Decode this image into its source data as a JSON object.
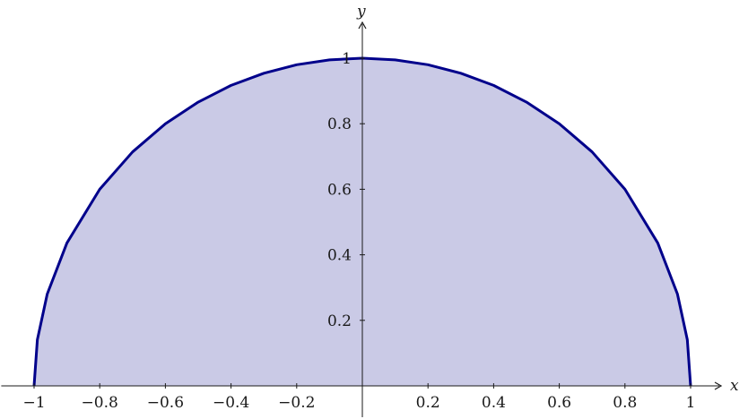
{
  "chart_data": {
    "type": "area",
    "title": "",
    "xlabel": "x",
    "ylabel": "y",
    "xlim": [
      -1.1,
      1.1
    ],
    "ylim": [
      -0.1,
      1.1
    ],
    "grid": false,
    "x_ticks": [
      -1,
      -0.8,
      -0.6,
      -0.4,
      -0.2,
      0.2,
      0.4,
      0.6,
      0.8,
      1
    ],
    "x_tick_labels": [
      "−1",
      "−0.8",
      "−0.6",
      "−0.4",
      "−0.2",
      "0.2",
      "0.4",
      "0.6",
      "0.8",
      "1"
    ],
    "y_ticks": [
      0.2,
      0.4,
      0.6,
      0.8,
      1
    ],
    "y_tick_labels": [
      "0.2",
      "0.4",
      "0.6",
      "0.8",
      "1"
    ],
    "series": [
      {
        "x": [
          -1,
          -0.99,
          -0.96,
          -0.9,
          -0.8,
          -0.7,
          -0.6,
          -0.5,
          -0.4,
          -0.3,
          -0.2,
          -0.1,
          0,
          0.1,
          0.2,
          0.3,
          0.4,
          0.5,
          0.6,
          0.7,
          0.8,
          0.9,
          0.96,
          0.99,
          1
        ],
        "y": [
          0,
          0.141,
          0.28,
          0.436,
          0.6,
          0.714,
          0.8,
          0.866,
          0.917,
          0.954,
          0.98,
          0.995,
          1,
          0.995,
          0.98,
          0.954,
          0.917,
          0.866,
          0.8,
          0.714,
          0.6,
          0.436,
          0.28,
          0.141,
          0
        ],
        "line_color": "#00008b",
        "fill_color": "#cacae6"
      }
    ]
  }
}
